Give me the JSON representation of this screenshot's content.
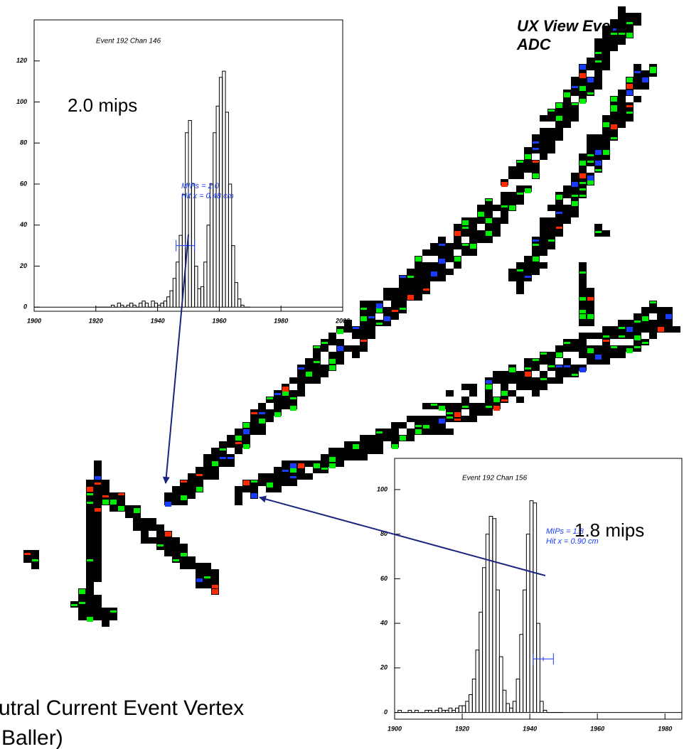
{
  "chart_data": [
    {
      "type": "histogram",
      "title": "Event 192 Chan 146",
      "annotations": [
        "MIPs = 2.0",
        "Hit x =  0.48 cm"
      ],
      "bins": [
        1920,
        1921,
        1922,
        1923,
        1924,
        1925,
        1926,
        1927,
        1928,
        1929,
        1930,
        1931,
        1932,
        1933,
        1934,
        1935,
        1936,
        1937,
        1938,
        1939,
        1940,
        1941,
        1942,
        1943,
        1944,
        1945,
        1946,
        1947,
        1948,
        1949,
        1950,
        1951,
        1952,
        1953,
        1954,
        1955,
        1956,
        1957,
        1958,
        1959,
        1960,
        1961,
        1962,
        1963,
        1964,
        1965,
        1966,
        1967,
        1968,
        1969,
        1970
      ],
      "values": [
        0,
        0,
        0,
        0,
        0,
        1,
        0,
        2,
        1,
        0,
        1,
        2,
        1,
        0,
        2,
        3,
        2,
        0,
        3,
        2,
        1,
        2,
        3,
        5,
        8,
        14,
        22,
        35,
        55,
        85,
        91,
        60,
        20,
        9,
        10,
        22,
        40,
        60,
        85,
        98,
        112,
        115,
        95,
        60,
        30,
        12,
        4,
        1,
        0,
        0
      ],
      "fit_point": {
        "x": 1949,
        "y": 30,
        "xerr": 3
      },
      "color": "#000000",
      "fit_color": "#1a3cff",
      "xlim": [
        1900,
        2000
      ],
      "ylim": [
        -2,
        140
      ],
      "xticks": [
        1900,
        1920,
        1940,
        1960,
        1980,
        2000
      ],
      "yticks": [
        0,
        20,
        40,
        60,
        80,
        100,
        120
      ]
    },
    {
      "type": "histogram",
      "title": "Event 192 Chan 156",
      "annotations": [
        "MIPs = 1.8",
        "Hit x =  0.90 cm"
      ],
      "bins": [
        1900,
        1901,
        1902,
        1903,
        1904,
        1905,
        1906,
        1907,
        1908,
        1909,
        1910,
        1911,
        1912,
        1913,
        1914,
        1915,
        1916,
        1917,
        1918,
        1919,
        1920,
        1921,
        1922,
        1923,
        1924,
        1925,
        1926,
        1927,
        1928,
        1929,
        1930,
        1931,
        1932,
        1933,
        1934,
        1935,
        1936,
        1937,
        1938,
        1939,
        1940,
        1941,
        1942,
        1943,
        1944,
        1945,
        1946,
        1947,
        1948,
        1949,
        1950
      ],
      "values": [
        0,
        1,
        0,
        0,
        1,
        0,
        1,
        0,
        0,
        1,
        1,
        0,
        1,
        2,
        1,
        1,
        2,
        1,
        2,
        3,
        3,
        5,
        8,
        15,
        28,
        45,
        65,
        80,
        88,
        87,
        55,
        25,
        10,
        4,
        2,
        5,
        15,
        35,
        55,
        80,
        95,
        94,
        40,
        5,
        1,
        0,
        0,
        0,
        0,
        0
      ],
      "fit_point": {
        "x": 1944,
        "y": 24,
        "xerr": 3
      },
      "color": "#000000",
      "fit_color": "#1a3cff",
      "xlim": [
        1900,
        1985
      ],
      "ylim": [
        -3,
        114
      ],
      "xticks": [
        1900,
        1920,
        1940,
        1960,
        1980
      ],
      "yticks": [
        0,
        20,
        40,
        60,
        80,
        100
      ]
    }
  ],
  "display": {
    "title_lines": [
      "UX View Event",
      "ADC"
    ],
    "labels": [
      "2.0 mips",
      "1.8 mips"
    ],
    "caption": [
      "utral Current Event Vertex",
      "Baller)"
    ]
  }
}
